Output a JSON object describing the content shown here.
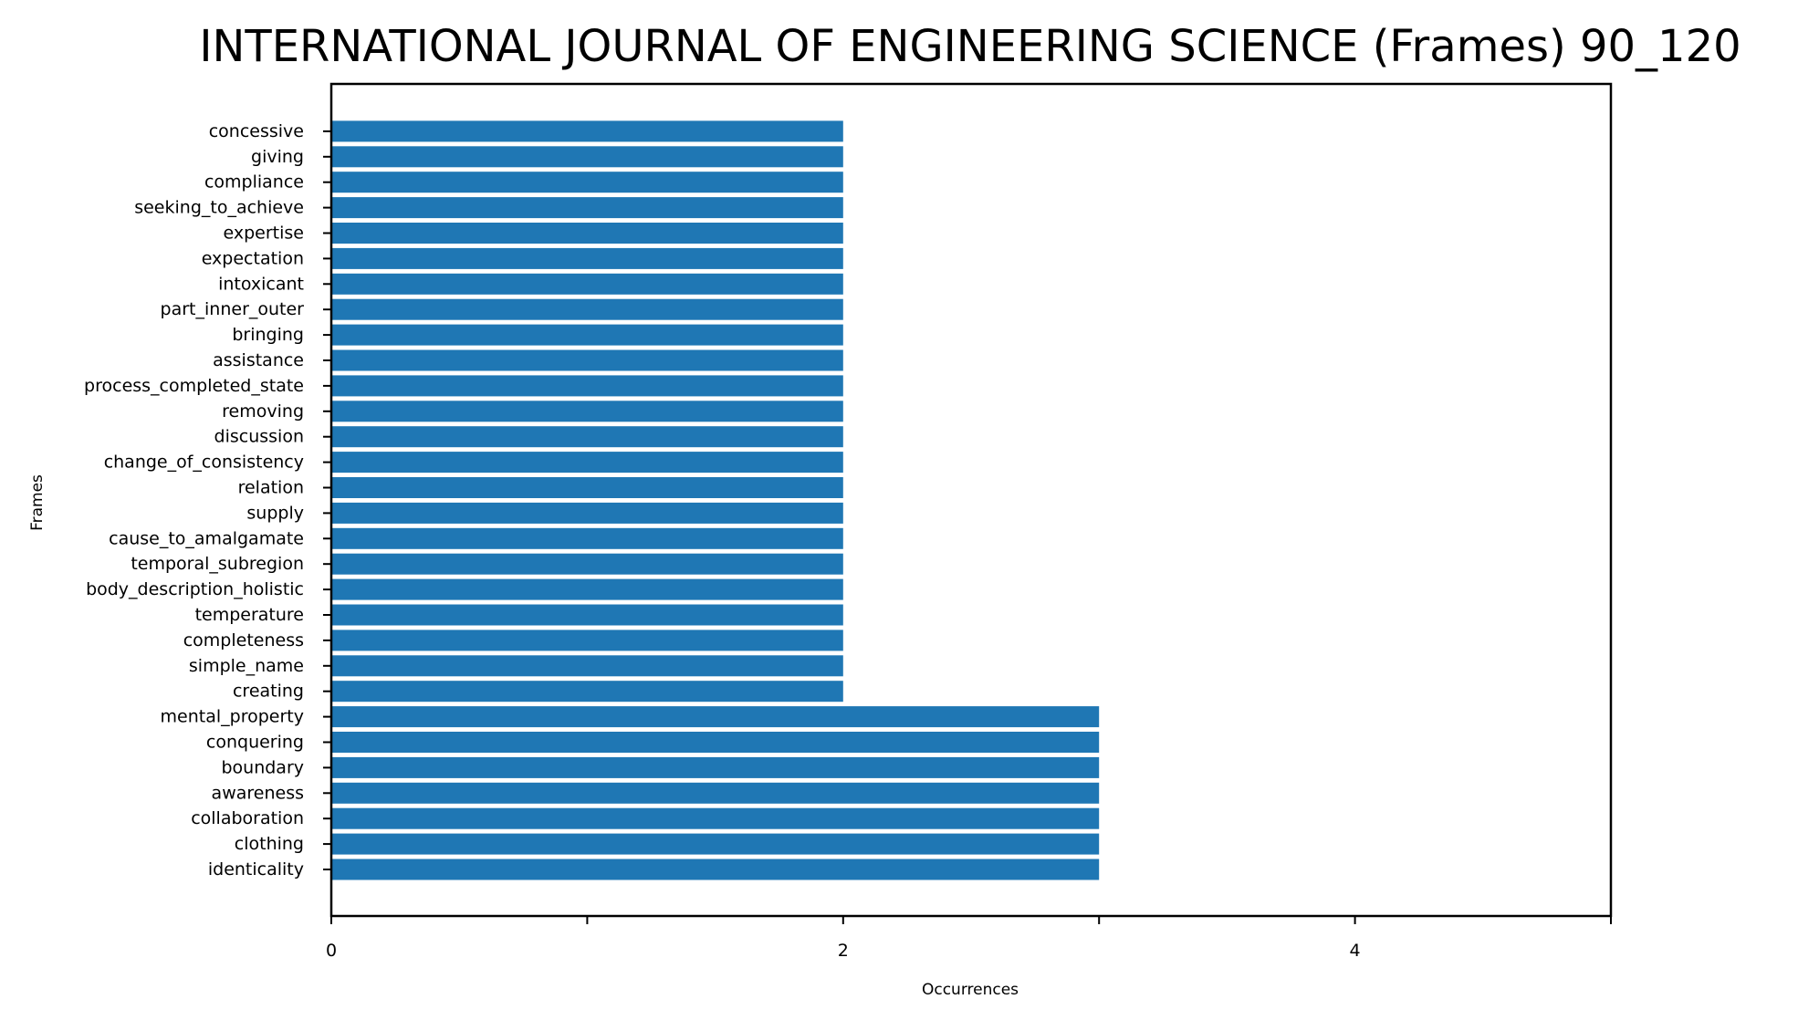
{
  "chart_data": {
    "type": "bar",
    "orientation": "horizontal",
    "title": "INTERNATIONAL JOURNAL OF ENGINEERING SCIENCE (Frames) 90_120",
    "xlabel": "Occurrences",
    "ylabel": "Frames",
    "xlim": [
      0,
      5
    ],
    "xticks": [
      0,
      2,
      4
    ],
    "bar_color": "#1f77b4",
    "categories": [
      "identicality",
      "clothing",
      "collaboration",
      "awareness",
      "boundary",
      "conquering",
      "mental_property",
      "creating",
      "simple_name",
      "completeness",
      "temperature",
      "body_description_holistic",
      "temporal_subregion",
      "cause_to_amalgamate",
      "supply",
      "relation",
      "change_of_consistency",
      "discussion",
      "removing",
      "process_completed_state",
      "assistance",
      "bringing",
      "part_inner_outer",
      "intoxicant",
      "expectation",
      "expertise",
      "seeking_to_achieve",
      "compliance",
      "giving",
      "concessive"
    ],
    "values": [
      3,
      3,
      3,
      3,
      3,
      3,
      3,
      2,
      2,
      2,
      2,
      2,
      2,
      2,
      2,
      2,
      2,
      2,
      2,
      2,
      2,
      2,
      2,
      2,
      2,
      2,
      2,
      2,
      2,
      2
    ]
  }
}
